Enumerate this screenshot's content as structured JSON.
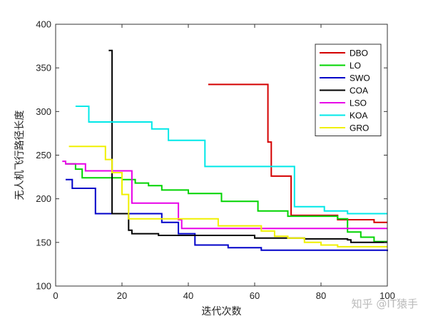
{
  "chart_data": {
    "type": "line",
    "xlabel": "迭代次数",
    "ylabel": "无人机飞行路径长度",
    "xlim": [
      0,
      100
    ],
    "ylim": [
      100,
      400
    ],
    "xticks": [
      "0",
      "20",
      "40",
      "60",
      "80",
      "100"
    ],
    "yticks": [
      "100",
      "150",
      "200",
      "250",
      "300",
      "350",
      "400"
    ],
    "legend_position": "top-right",
    "grid": false,
    "series": [
      {
        "name": "DBO",
        "color": "#d40000",
        "points": [
          [
            46,
            331
          ],
          [
            63,
            331
          ],
          [
            64,
            265
          ],
          [
            65,
            226
          ],
          [
            70,
            226
          ],
          [
            71,
            181
          ],
          [
            80,
            181
          ],
          [
            85,
            176
          ],
          [
            95,
            176
          ],
          [
            96,
            173
          ],
          [
            100,
            173
          ]
        ]
      },
      {
        "name": "LO",
        "color": "#00d400",
        "points": [
          [
            3,
            240
          ],
          [
            6,
            234
          ],
          [
            8,
            224
          ],
          [
            20,
            222
          ],
          [
            24,
            218
          ],
          [
            28,
            215
          ],
          [
            32,
            210
          ],
          [
            40,
            206
          ],
          [
            46,
            206
          ],
          [
            50,
            197
          ],
          [
            60,
            197
          ],
          [
            61,
            186
          ],
          [
            65,
            186
          ],
          [
            70,
            180
          ],
          [
            85,
            177
          ],
          [
            88,
            162
          ],
          [
            91,
            162
          ],
          [
            92,
            156
          ],
          [
            95,
            156
          ],
          [
            96,
            151
          ],
          [
            100,
            151
          ]
        ]
      },
      {
        "name": "SWO",
        "color": "#0000c8",
        "points": [
          [
            3,
            222
          ],
          [
            4,
            222
          ],
          [
            5,
            212
          ],
          [
            11,
            212
          ],
          [
            12,
            183
          ],
          [
            26,
            183
          ],
          [
            32,
            173
          ],
          [
            36,
            173
          ],
          [
            37,
            160
          ],
          [
            40,
            160
          ],
          [
            42,
            147
          ],
          [
            50,
            147
          ],
          [
            52,
            144
          ],
          [
            60,
            144
          ],
          [
            62,
            141
          ],
          [
            100,
            140
          ]
        ]
      },
      {
        "name": "COA",
        "color": "#000000",
        "points": [
          [
            16,
            370
          ],
          [
            17,
            183
          ],
          [
            21,
            183
          ],
          [
            22,
            164
          ],
          [
            23,
            160
          ],
          [
            30,
            160
          ],
          [
            31,
            158
          ],
          [
            40,
            158
          ],
          [
            60,
            155
          ],
          [
            75,
            154
          ],
          [
            88,
            153
          ],
          [
            89,
            150
          ],
          [
            100,
            150
          ]
        ]
      },
      {
        "name": "LSO",
        "color": "#e800e8",
        "points": [
          [
            2,
            243
          ],
          [
            3,
            240
          ],
          [
            8,
            240
          ],
          [
            9,
            232
          ],
          [
            22,
            232
          ],
          [
            23,
            195
          ],
          [
            36,
            195
          ],
          [
            37,
            176
          ],
          [
            38,
            166
          ],
          [
            100,
            166
          ]
        ]
      },
      {
        "name": "KOA",
        "color": "#00e8e8",
        "points": [
          [
            6,
            306
          ],
          [
            9,
            306
          ],
          [
            10,
            288
          ],
          [
            28,
            288
          ],
          [
            29,
            280
          ],
          [
            33,
            280
          ],
          [
            34,
            267
          ],
          [
            44,
            267
          ],
          [
            45,
            237
          ],
          [
            71,
            237
          ],
          [
            72,
            191
          ],
          [
            80,
            191
          ],
          [
            81,
            186
          ],
          [
            87,
            186
          ],
          [
            88,
            183
          ],
          [
            100,
            183
          ]
        ]
      },
      {
        "name": "GRO",
        "color": "#f0f000",
        "points": [
          [
            4,
            260
          ],
          [
            14,
            260
          ],
          [
            15,
            245
          ],
          [
            17,
            230
          ],
          [
            20,
            205
          ],
          [
            22,
            177
          ],
          [
            48,
            177
          ],
          [
            49,
            169
          ],
          [
            60,
            169
          ],
          [
            62,
            163
          ],
          [
            66,
            157
          ],
          [
            70,
            155
          ],
          [
            75,
            150
          ],
          [
            80,
            147
          ],
          [
            85,
            145
          ],
          [
            100,
            145
          ]
        ]
      }
    ]
  },
  "watermark": "知乎 @IT猿手"
}
